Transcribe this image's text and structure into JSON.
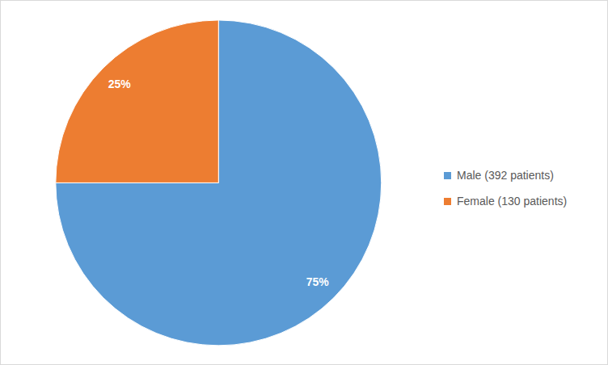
{
  "chart_data": {
    "type": "pie",
    "categories": [
      "Male (392 patients)",
      "Female (130 patients)"
    ],
    "values": [
      75,
      25
    ],
    "value_labels": [
      "75%",
      "25%"
    ],
    "colors": [
      "#5b9bd5",
      "#ed7d31"
    ],
    "data_labels": true,
    "legend": "right"
  }
}
